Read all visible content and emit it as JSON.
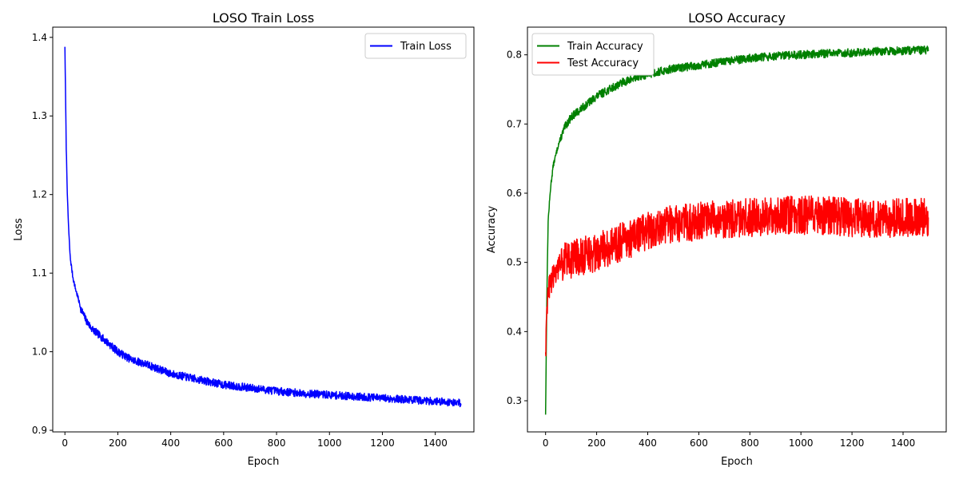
{
  "chart_data": [
    {
      "type": "line",
      "title": "LOSO Train Loss",
      "xlabel": "Epoch",
      "ylabel": "Loss",
      "xlim": [
        -46,
        1546
      ],
      "ylim": [
        0.898,
        1.413
      ],
      "xticks": [
        0,
        200,
        400,
        600,
        800,
        1000,
        1200,
        1400
      ],
      "yticks": [
        0.9,
        1.0,
        1.1,
        1.2,
        1.3,
        1.4
      ],
      "ytick_decimals": 1,
      "grid": false,
      "legend_position": "upper-right",
      "series": [
        {
          "name": "Train Loss",
          "color": "#0000ff",
          "x": [
            0,
            5,
            10,
            15,
            20,
            30,
            40,
            50,
            60,
            80,
            100,
            150,
            200,
            250,
            300,
            400,
            500,
            600,
            700,
            800,
            900,
            1000,
            1100,
            1200,
            1300,
            1400,
            1499
          ],
          "y": [
            1.388,
            1.26,
            1.19,
            1.15,
            1.12,
            1.095,
            1.08,
            1.068,
            1.055,
            1.04,
            1.03,
            1.015,
            1.0,
            0.99,
            0.985,
            0.972,
            0.965,
            0.958,
            0.954,
            0.95,
            0.947,
            0.945,
            0.943,
            0.941,
            0.939,
            0.937,
            0.935
          ],
          "noise": 0.005
        }
      ]
    },
    {
      "type": "line",
      "title": "LOSO Accuracy",
      "xlabel": "Epoch",
      "ylabel": "Accuracy",
      "xlim": [
        -71,
        1569
      ],
      "ylim": [
        0.255,
        0.84
      ],
      "xticks": [
        0,
        200,
        400,
        600,
        800,
        1000,
        1200,
        1400
      ],
      "yticks": [
        0.3,
        0.4,
        0.5,
        0.6,
        0.7,
        0.8
      ],
      "ytick_decimals": 1,
      "grid": false,
      "legend_position": "upper-left",
      "series": [
        {
          "name": "Train Accuracy",
          "color": "#008000",
          "x": [
            0,
            5,
            10,
            20,
            30,
            50,
            75,
            100,
            150,
            200,
            300,
            400,
            500,
            600,
            700,
            800,
            900,
            1000,
            1100,
            1200,
            1300,
            1400,
            1499
          ],
          "y": [
            0.28,
            0.45,
            0.56,
            0.61,
            0.64,
            0.67,
            0.695,
            0.71,
            0.725,
            0.74,
            0.76,
            0.772,
            0.78,
            0.785,
            0.79,
            0.795,
            0.798,
            0.8,
            0.802,
            0.803,
            0.805,
            0.806,
            0.807
          ],
          "noise": 0.006
        },
        {
          "name": "Test Accuracy",
          "color": "#ff0000",
          "x": [
            0,
            5,
            10,
            30,
            60,
            100,
            200,
            300,
            400,
            500,
            600,
            700,
            800,
            900,
            1000,
            1100,
            1200,
            1300,
            1400,
            1499
          ],
          "y": [
            0.37,
            0.42,
            0.46,
            0.48,
            0.5,
            0.505,
            0.515,
            0.53,
            0.545,
            0.555,
            0.56,
            0.562,
            0.565,
            0.567,
            0.568,
            0.568,
            0.565,
            0.563,
            0.565,
            0.565
          ],
          "noise": 0.028
        }
      ]
    }
  ]
}
